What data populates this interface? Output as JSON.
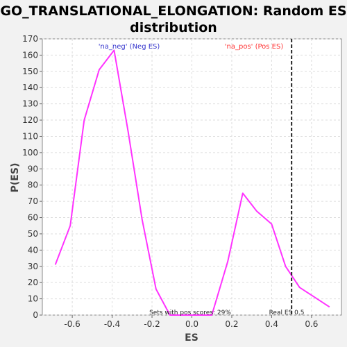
{
  "chart_data": {
    "type": "line",
    "title": "GO_TRANSLATIONAL_ELONGATION: Random ES distribution",
    "title_lines": [
      "GO_TRANSLATIONAL_ELONGATION: Random ES",
      "distribution"
    ],
    "xlabel": "ES",
    "ylabel": "P(ES)",
    "xlim": [
      -0.75,
      0.75
    ],
    "ylim": [
      0,
      170
    ],
    "xticks": [
      -0.6,
      -0.4,
      -0.2,
      0.0,
      0.2,
      0.4,
      0.6
    ],
    "xtick_labels": [
      "-0.6",
      "-0.4",
      "-0.2",
      "0.0",
      "0.2",
      "0.4",
      "0.6"
    ],
    "yticks": [
      0,
      10,
      20,
      30,
      40,
      50,
      60,
      70,
      80,
      90,
      100,
      110,
      120,
      130,
      140,
      150,
      160,
      170
    ],
    "grid": true,
    "series": [
      {
        "color": "#ff33ff",
        "x": [
          -0.685,
          -0.61,
          -0.54,
          -0.465,
          -0.39,
          -0.32,
          -0.25,
          -0.18,
          -0.11,
          -0.04,
          0.03,
          0.1,
          0.18,
          0.255,
          0.325,
          0.4,
          0.47,
          0.54,
          0.615,
          0.69
        ],
        "y": [
          31,
          55,
          120,
          151,
          163,
          113,
          59,
          16,
          0,
          0,
          0,
          0,
          33,
          75,
          64,
          56,
          30,
          17,
          11,
          5
        ]
      }
    ],
    "annotations": {
      "neg_label": "'na_neg' (Neg ES)",
      "neg_color": "#3333cc",
      "pos_label": "'na_pos' (Pos ES)",
      "pos_color": "#ff3333",
      "pos_scores_text": "Sets with pos scores: 29%",
      "real_es_text": "Real ES 0.5",
      "real_es": 0.5
    }
  }
}
